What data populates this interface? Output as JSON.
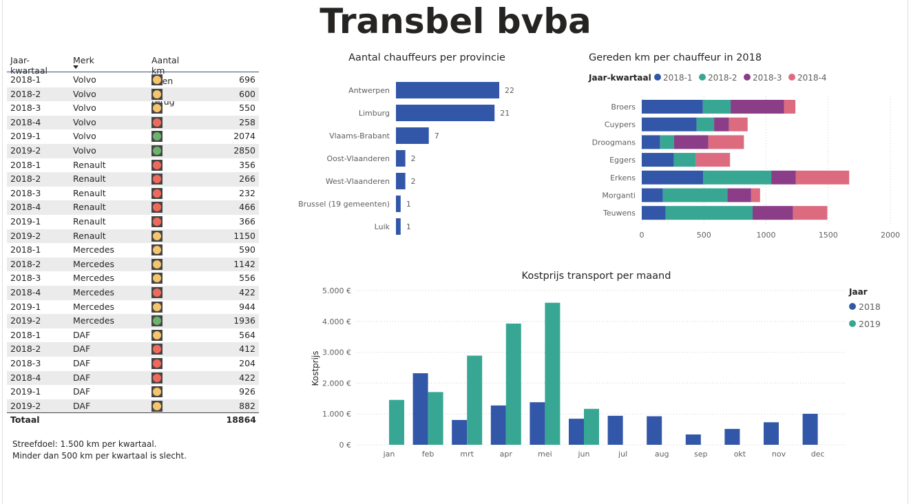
{
  "title": "Transbel bvba",
  "table": {
    "headers": [
      "Jaar-kwartaal",
      "Merk",
      "Aantal km heen en terug"
    ],
    "sorted_column": "Merk",
    "rows": [
      {
        "q": "2018-1",
        "merk": "Volvo",
        "status": "yellow",
        "km": "696"
      },
      {
        "q": "2018-2",
        "merk": "Volvo",
        "status": "yellow",
        "km": "600"
      },
      {
        "q": "2018-3",
        "merk": "Volvo",
        "status": "yellow",
        "km": "550"
      },
      {
        "q": "2018-4",
        "merk": "Volvo",
        "status": "red",
        "km": "258"
      },
      {
        "q": "2019-1",
        "merk": "Volvo",
        "status": "green",
        "km": "2074"
      },
      {
        "q": "2019-2",
        "merk": "Volvo",
        "status": "green",
        "km": "2850"
      },
      {
        "q": "2018-1",
        "merk": "Renault",
        "status": "red",
        "km": "356"
      },
      {
        "q": "2018-2",
        "merk": "Renault",
        "status": "red",
        "km": "266"
      },
      {
        "q": "2018-3",
        "merk": "Renault",
        "status": "red",
        "km": "232"
      },
      {
        "q": "2018-4",
        "merk": "Renault",
        "status": "red",
        "km": "466"
      },
      {
        "q": "2019-1",
        "merk": "Renault",
        "status": "red",
        "km": "366"
      },
      {
        "q": "2019-2",
        "merk": "Renault",
        "status": "yellow",
        "km": "1150"
      },
      {
        "q": "2018-1",
        "merk": "Mercedes",
        "status": "yellow",
        "km": "590"
      },
      {
        "q": "2018-2",
        "merk": "Mercedes",
        "status": "yellow",
        "km": "1142"
      },
      {
        "q": "2018-3",
        "merk": "Mercedes",
        "status": "yellow",
        "km": "556"
      },
      {
        "q": "2018-4",
        "merk": "Mercedes",
        "status": "red",
        "km": "422"
      },
      {
        "q": "2019-1",
        "merk": "Mercedes",
        "status": "yellow",
        "km": "944"
      },
      {
        "q": "2019-2",
        "merk": "Mercedes",
        "status": "green",
        "km": "1936"
      },
      {
        "q": "2018-1",
        "merk": "DAF",
        "status": "yellow",
        "km": "564"
      },
      {
        "q": "2018-2",
        "merk": "DAF",
        "status": "red",
        "km": "412"
      },
      {
        "q": "2018-3",
        "merk": "DAF",
        "status": "red",
        "km": "204"
      },
      {
        "q": "2018-4",
        "merk": "DAF",
        "status": "red",
        "km": "422"
      },
      {
        "q": "2019-1",
        "merk": "DAF",
        "status": "yellow",
        "km": "926"
      },
      {
        "q": "2019-2",
        "merk": "DAF",
        "status": "yellow",
        "km": "882"
      }
    ],
    "total_label": "Totaal",
    "total": "18864",
    "status_colors": {
      "yellow": "#F5C46C",
      "red": "#F06A5C",
      "green": "#6BB46B"
    }
  },
  "notes": [
    "Streefdoel: 1.500 km per kwartaal.",
    "Minder dan 500 km per kwartaal is slecht."
  ],
  "chart_data": [
    {
      "type": "bar",
      "orientation": "horizontal",
      "title": "Aantal chauffeurs per provincie",
      "categories": [
        "Antwerpen",
        "Limburg",
        "Vlaams-Brabant",
        "Oost-Vlaanderen",
        "West-Vlaanderen",
        "Brussel (19 gemeenten)",
        "Luik"
      ],
      "values": [
        22,
        21,
        7,
        2,
        2,
        1,
        1
      ],
      "data_labels": true,
      "color": "#3257A8"
    },
    {
      "type": "bar",
      "orientation": "horizontal",
      "stacked": true,
      "title": "Gereden km per chauffeur in 2018",
      "legend_title": "Jaar-kwartaal",
      "legend_position": "top-left",
      "categories": [
        "Broers",
        "Cuypers",
        "Droogmans",
        "Eggers",
        "Erkens",
        "Morganti",
        "Teuwens"
      ],
      "series": [
        {
          "name": "2018-1",
          "color": "#3257A8",
          "values": [
            492,
            442,
            148,
            259,
            493,
            170,
            192
          ]
        },
        {
          "name": "2018-2",
          "color": "#37A794",
          "values": [
            223,
            140,
            112,
            177,
            549,
            519,
            700
          ]
        },
        {
          "name": "2018-3",
          "color": "#8B3D88",
          "values": [
            429,
            120,
            276,
            0,
            198,
            191,
            325
          ]
        },
        {
          "name": "2018-4",
          "color": "#DD6B7F",
          "values": [
            92,
            150,
            286,
            274,
            429,
            72,
            276
          ]
        }
      ],
      "xlim": [
        0,
        2000
      ],
      "xticks": [
        "0",
        "500",
        "1000",
        "1500",
        "2000"
      ],
      "grid": true
    },
    {
      "type": "bar",
      "title": "Kostprijs transport per maand",
      "ylabel": "Kostprijs",
      "legend_title": "Jaar",
      "legend_position": "right",
      "categories": [
        "jan",
        "feb",
        "mrt",
        "apr",
        "mei",
        "jun",
        "jul",
        "aug",
        "sep",
        "okt",
        "nov",
        "dec"
      ],
      "series": [
        {
          "name": "2018",
          "color": "#3257A8",
          "values": [
            null,
            2320,
            805,
            1275,
            1380,
            845,
            940,
            925,
            335,
            515,
            730,
            1005
          ]
        },
        {
          "name": "2019",
          "color": "#37A794",
          "values": [
            1455,
            1710,
            2890,
            3930,
            4605,
            1165,
            null,
            null,
            null,
            null,
            null,
            null
          ]
        }
      ],
      "ylim": [
        0,
        5000
      ],
      "yticks": [
        "0 €",
        "1.000 €",
        "2.000 €",
        "3.000 €",
        "4.000 €",
        "5.000 €"
      ],
      "grid": true
    }
  ]
}
